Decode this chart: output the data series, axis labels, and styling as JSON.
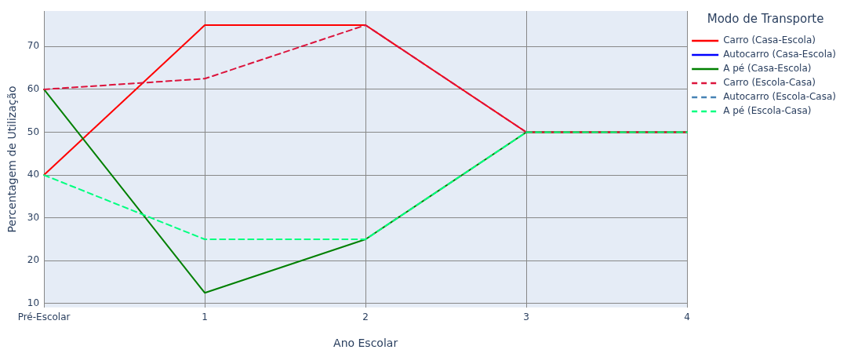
{
  "chart_data": {
    "type": "line",
    "xlabel": "Ano Escolar",
    "ylabel": "Percentagem de Utilização",
    "legend_title": "Modo de Transporte",
    "categories": [
      "Pré-Escolar",
      "1",
      "2",
      "3",
      "4"
    ],
    "ylim": [
      9.1,
      78.3
    ],
    "yticks": [
      10,
      20,
      30,
      40,
      50,
      60,
      70
    ],
    "grid": true,
    "legend": "right",
    "marker": "none",
    "series": [
      {
        "name": "Carro (Casa-Escola)",
        "color": "#ff0000",
        "line_style": "solid",
        "values": [
          40,
          75,
          75,
          50,
          50
        ]
      },
      {
        "name": "Autocarro (Casa-Escola)",
        "color": "#0000ff",
        "line_style": "solid",
        "values": [
          null,
          null,
          null,
          null,
          null
        ]
      },
      {
        "name": "A pé (Casa-Escola)",
        "color": "#008000",
        "line_style": "solid",
        "values": [
          60,
          12.5,
          25,
          50,
          50
        ]
      },
      {
        "name": "Carro (Escola-Casa)",
        "color": "#dc143c",
        "line_style": "dashed",
        "values": [
          60,
          62.5,
          75,
          50,
          50
        ]
      },
      {
        "name": "Autocarro (Escola-Casa)",
        "color": "#4682b4",
        "line_style": "dashed",
        "values": [
          null,
          null,
          null,
          null,
          null
        ]
      },
      {
        "name": "A pé (Escola-Casa)",
        "color": "#00ff7f",
        "line_style": "dashed",
        "values": [
          40,
          25,
          25,
          50,
          50
        ]
      }
    ]
  }
}
